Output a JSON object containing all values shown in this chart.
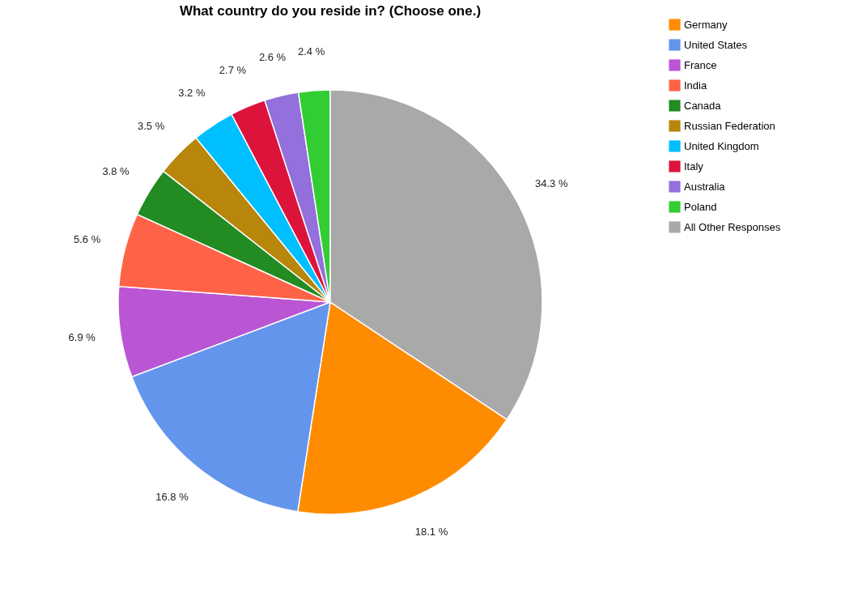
{
  "chart_data": {
    "type": "pie",
    "title": "What country do you reside in? (Choose one.)",
    "categories": [
      "Germany",
      "United States",
      "France",
      "India",
      "Canada",
      "Russian Federation",
      "United Kingdom",
      "Italy",
      "Australia",
      "Poland",
      "All Other Responses"
    ],
    "values": [
      18.1,
      16.8,
      6.9,
      5.6,
      3.8,
      3.5,
      3.2,
      2.7,
      2.6,
      2.4,
      34.3
    ],
    "value_labels": [
      "18.1 %",
      "16.8 %",
      "6.9 %",
      "5.6 %",
      "3.8 %",
      "3.5 %",
      "3.2 %",
      "2.7 %",
      "2.6 %",
      "2.4 %",
      "34.3 %"
    ],
    "colors": [
      "#ff8c00",
      "#6495ed",
      "#ba55d3",
      "#ff6347",
      "#228b22",
      "#b8860b",
      "#00bfff",
      "#dc143c",
      "#9370db",
      "#32cd32",
      "#a9a9a9"
    ],
    "legend": "right"
  }
}
